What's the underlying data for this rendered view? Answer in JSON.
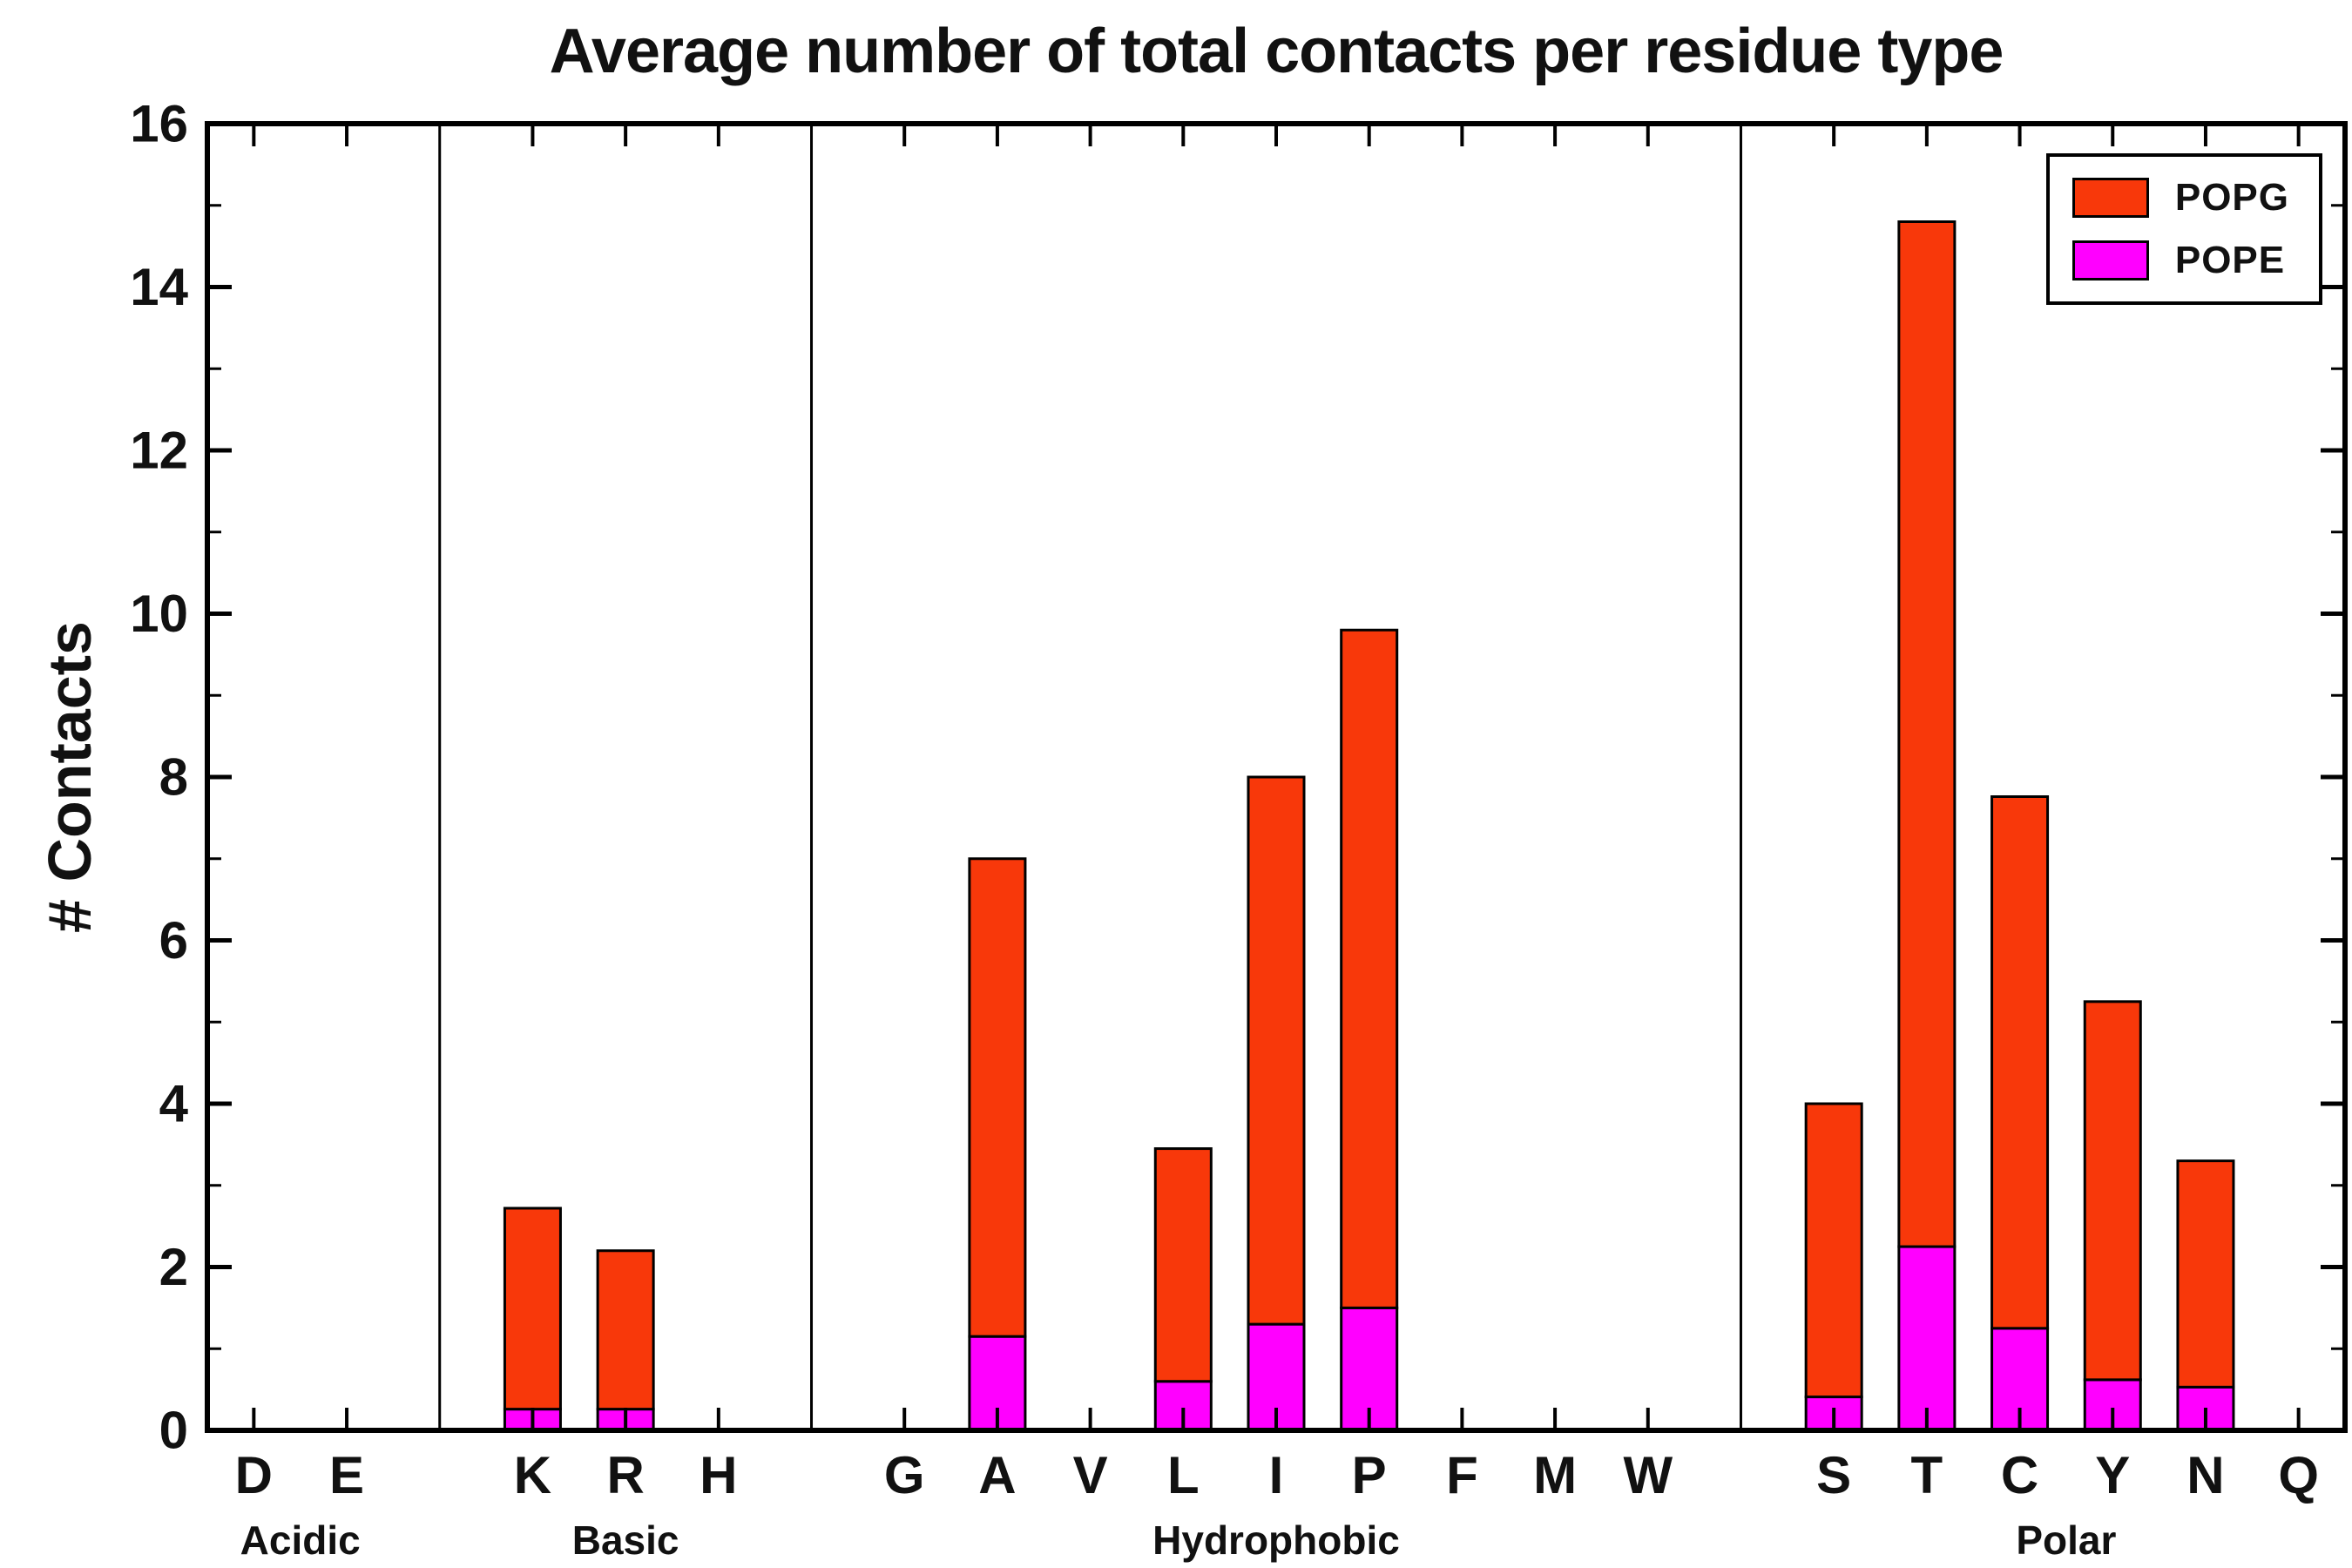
{
  "chart_data": {
    "type": "bar",
    "stacked": true,
    "title": "Average number of total contacts per residue type",
    "ylabel": "# Contacts",
    "ylim": [
      0,
      16
    ],
    "ytick_major_step": 2,
    "ytick_minor_step": 1,
    "grid": false,
    "legend_position": "top-right",
    "series": [
      {
        "name": "POPG",
        "color": "#f8380a"
      },
      {
        "name": "POPE",
        "color": "#ff00ff"
      }
    ],
    "groups": [
      {
        "label": "Acidic",
        "residues": [
          "D",
          "E"
        ],
        "POPE": [
          0,
          0
        ],
        "POPG": [
          0,
          0
        ]
      },
      {
        "label": "Basic",
        "residues": [
          "K",
          "R",
          "H"
        ],
        "POPE": [
          0.26,
          0.26,
          0
        ],
        "POPG": [
          2.46,
          1.94,
          0
        ]
      },
      {
        "label": "Hydrophobic",
        "residues": [
          "G",
          "A",
          "V",
          "L",
          "I",
          "P",
          "F",
          "M",
          "W"
        ],
        "POPE": [
          0,
          1.15,
          0,
          0.6,
          1.3,
          1.5,
          0,
          0,
          0
        ],
        "POPG": [
          0,
          5.85,
          0,
          2.85,
          6.7,
          8.3,
          0,
          0,
          0
        ]
      },
      {
        "label": "Polar",
        "residues": [
          "S",
          "T",
          "C",
          "Y",
          "N",
          "Q"
        ],
        "POPE": [
          0.41,
          2.25,
          1.25,
          0.62,
          0.53,
          0
        ],
        "POPG": [
          3.59,
          12.55,
          6.51,
          4.63,
          2.77,
          0
        ]
      }
    ],
    "axis_color": "#000000",
    "background_color": "#ffffff"
  }
}
